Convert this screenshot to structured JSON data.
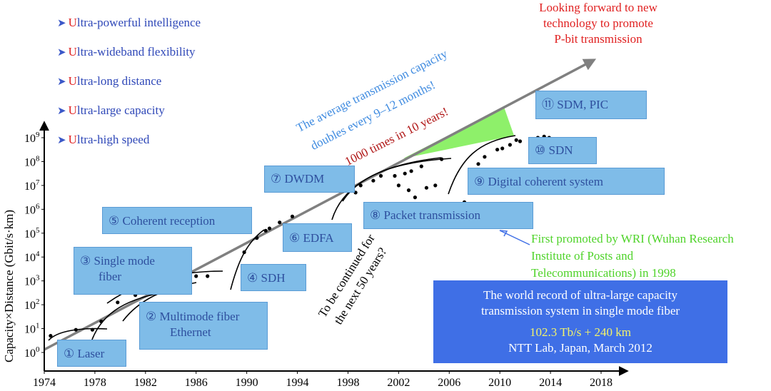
{
  "features": [
    {
      "u": "U",
      "rest": "ltra-powerful intelligence"
    },
    {
      "u": "U",
      "rest": "ltra-wideband flexibility"
    },
    {
      "u": "U",
      "rest": "ltra-long distance"
    },
    {
      "u": "U",
      "rest": "ltra-large capacity"
    },
    {
      "u": "U",
      "rest": "ltra-high speed"
    }
  ],
  "forward_note": [
    "Looking forward to new",
    "technology to promote",
    "P-bit transmission"
  ],
  "trend_text": {
    "line1": "The average transmission capacity",
    "line2": "doubles every 9–12 months!",
    "line3": "1000 times in 10 years!",
    "continued1": "To be continued for",
    "continued2": "the next 50 years?"
  },
  "milestones": {
    "laser": "① Laser",
    "multimode1": "② Multimode fiber",
    "multimode2": "Ethernet",
    "single1": "③ Single mode",
    "single2": "fiber",
    "sdh": "④ SDH",
    "coherent": "⑤ Coherent reception",
    "edfa": "⑥ EDFA",
    "dwdm": "⑦ DWDM",
    "packet": "⑧ Packet transmission",
    "digital": "⑨ Digital coherent system",
    "sdn": "⑩ SDN",
    "sdmpic": "⑪ SDM, PIC"
  },
  "wri_note": [
    "First promoted by WRI (Wuhan Research",
    "Institute of Posts and",
    "Telecommunications) in 1998"
  ],
  "record_box": {
    "line1": "The world record of ultra-large capacity",
    "line2": "transmission system in single mode fiber",
    "line3": "102.3 Tb/s + 240 km",
    "line4": "NTT Lab, Japan, March 2012"
  },
  "colors": {
    "trend_arrow": "#808080",
    "green_wedge": "#8ef06a",
    "box_fill": "#7fbce8",
    "record_fill": "#3f6fe6"
  },
  "chart_data": {
    "type": "scatter",
    "ylabel": "Capacity×Distance (Gbit/s·km)",
    "xlabel": "",
    "y_scale": "log",
    "xlim": [
      1974,
      2021
    ],
    "ylim_exp": [
      -0.5,
      9.5
    ],
    "x_ticks": [
      "1974",
      "1978",
      "1982",
      "1986",
      "1990",
      "1994",
      "1998",
      "2002",
      "2006",
      "2010",
      "2014",
      "2018"
    ],
    "y_ticks": [
      {
        "base": "10",
        "exp": "0"
      },
      {
        "base": "10",
        "exp": "1"
      },
      {
        "base": "10",
        "exp": "2"
      },
      {
        "base": "10",
        "exp": "3"
      },
      {
        "base": "10",
        "exp": "4"
      },
      {
        "base": "10",
        "exp": "5"
      },
      {
        "base": "10",
        "exp": "6"
      },
      {
        "base": "10",
        "exp": "7"
      },
      {
        "base": "10",
        "exp": "8"
      },
      {
        "base": "10",
        "exp": "9"
      }
    ],
    "points": [
      [
        1974.5,
        0.7
      ],
      [
        1976.5,
        0.95
      ],
      [
        1977.8,
        0.95
      ],
      [
        1978.5,
        1.3
      ],
      [
        1979.8,
        2.1
      ],
      [
        1981.2,
        2.4
      ],
      [
        1983.0,
        2.8
      ],
      [
        1984.0,
        2.5
      ],
      [
        1984.8,
        3.0
      ],
      [
        1985.2,
        1.4
      ],
      [
        1985.9,
        1.1
      ],
      [
        1986.0,
        3.2
      ],
      [
        1986.9,
        3.2
      ],
      [
        1989.7,
        3.4
      ],
      [
        1989.8,
        4.2
      ],
      [
        1990.8,
        4.8
      ],
      [
        1991.5,
        5.1
      ],
      [
        1991.8,
        5.2
      ],
      [
        1992.6,
        5.45
      ],
      [
        1993.6,
        5.7
      ],
      [
        1998.6,
        6.7
      ],
      [
        1999.0,
        7.0
      ],
      [
        2000.0,
        7.2
      ],
      [
        2000.6,
        7.4
      ],
      [
        2001.0,
        6.1
      ],
      [
        2001.7,
        7.4
      ],
      [
        2002.0,
        7.0
      ],
      [
        2002.5,
        7.5
      ],
      [
        2002.8,
        6.8
      ],
      [
        2003.0,
        7.6
      ],
      [
        2003.3,
        6.5
      ],
      [
        2003.8,
        7.8
      ],
      [
        2004.2,
        6.9
      ],
      [
        2004.9,
        7.0
      ],
      [
        2005.4,
        8.1
      ],
      [
        2007.2,
        6.3
      ],
      [
        2007.8,
        7.3
      ],
      [
        2008.3,
        7.9
      ],
      [
        2008.8,
        8.2
      ],
      [
        2009.4,
        7.65
      ],
      [
        2009.8,
        8.5
      ],
      [
        2010.2,
        8.55
      ],
      [
        2010.8,
        8.7
      ],
      [
        2011.3,
        8.9
      ],
      [
        2011.6,
        8.85
      ],
      [
        2012.4,
        8.9
      ],
      [
        2013.0,
        9.0
      ],
      [
        2013.5,
        9.05
      ],
      [
        2013.9,
        9.0
      ]
    ],
    "trend": {
      "from": [
        1974,
        0.35
      ],
      "to": [
        2018.7,
        13.5
      ]
    }
  }
}
